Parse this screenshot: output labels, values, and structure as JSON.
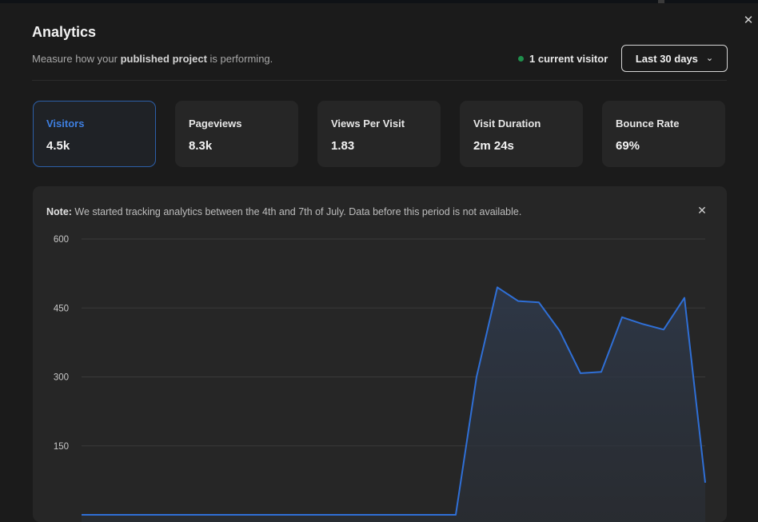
{
  "header": {
    "title": "Analytics",
    "subtitle_pre": "Measure how your ",
    "subtitle_bold": "published project",
    "subtitle_post": " is performing.",
    "visitor_status": "1 current visitor",
    "range_label": "Last 30 days"
  },
  "colors": {
    "accent": "#3e7fe0",
    "live_dot": "#1f8f4c",
    "line": "#2f6fd6"
  },
  "metrics": [
    {
      "label": "Visitors",
      "value": "4.5k",
      "active": true
    },
    {
      "label": "Pageviews",
      "value": "8.3k",
      "active": false
    },
    {
      "label": "Views Per Visit",
      "value": "1.83",
      "active": false
    },
    {
      "label": "Visit Duration",
      "value": "2m 24s",
      "active": false
    },
    {
      "label": "Bounce Rate",
      "value": "69%",
      "active": false
    }
  ],
  "note": {
    "bold": "Note:",
    "text": " We started tracking analytics between the 4th and 7th of July. Data before this period is not available."
  },
  "chart_data": {
    "type": "area",
    "title": "",
    "xlabel": "",
    "ylabel": "",
    "yticks": [
      600,
      450,
      300,
      150
    ],
    "ylim": [
      0,
      600
    ],
    "grid": true,
    "series": [
      {
        "values": [
          0,
          0,
          0,
          0,
          0,
          0,
          0,
          0,
          0,
          0,
          0,
          0,
          0,
          0,
          0,
          0,
          0,
          0,
          0,
          300,
          495,
          465,
          462,
          400,
          308,
          311,
          430,
          415,
          403,
          472,
          70
        ]
      }
    ]
  }
}
